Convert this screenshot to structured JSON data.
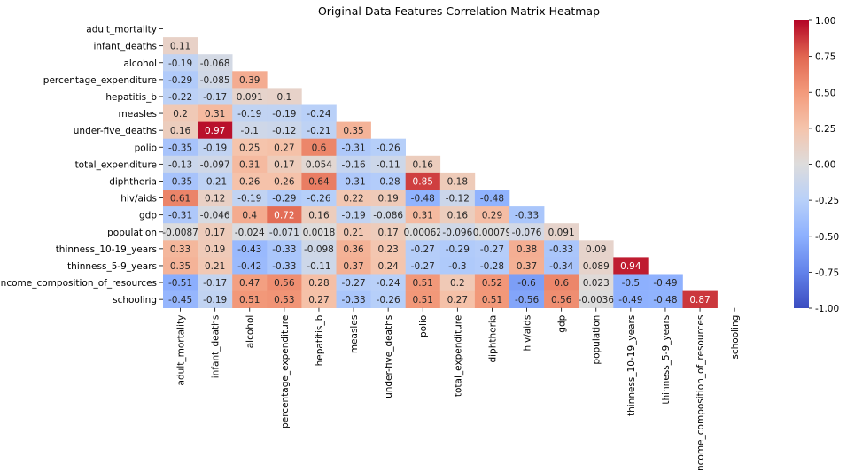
{
  "chart_data": {
    "type": "heatmap",
    "title": "Original Data Features Correlation Matrix Heatmap",
    "xlabel": "",
    "ylabel": "",
    "labels": [
      "adult_mortality",
      "infant_deaths",
      "alcohol",
      "percentage_expenditure",
      "hepatitis_b",
      "measles",
      "under-five_deaths",
      "polio",
      "total_expenditure",
      "diphtheria",
      "hiv/aids",
      "gdp",
      "population",
      "thinness_10-19_years",
      "thinness_5-9_years",
      "income_composition_of_resources",
      "schooling"
    ],
    "lower_triangle": [
      [],
      [
        "0.11"
      ],
      [
        "-0.19",
        "-0.068"
      ],
      [
        "-0.29",
        "-0.085",
        "0.39"
      ],
      [
        "-0.22",
        "-0.17",
        "0.091",
        "0.1"
      ],
      [
        "0.2",
        "0.31",
        "-0.19",
        "-0.19",
        "-0.24"
      ],
      [
        "0.16",
        "0.97",
        "-0.1",
        "-0.12",
        "-0.21",
        "0.35"
      ],
      [
        "-0.35",
        "-0.19",
        "0.25",
        "0.27",
        "0.6",
        "-0.31",
        "-0.26"
      ],
      [
        "-0.13",
        "-0.097",
        "0.31",
        "0.17",
        "0.054",
        "-0.16",
        "-0.11",
        "0.16"
      ],
      [
        "-0.35",
        "-0.21",
        "0.26",
        "0.26",
        "0.64",
        "-0.31",
        "-0.28",
        "0.85",
        "0.18"
      ],
      [
        "0.61",
        "0.12",
        "-0.19",
        "-0.29",
        "-0.26",
        "0.22",
        "0.19",
        "-0.48",
        "-0.12",
        "-0.48"
      ],
      [
        "-0.31",
        "-0.046",
        "0.4",
        "0.72",
        "0.16",
        "-0.19",
        "-0.086",
        "0.31",
        "0.16",
        "0.29",
        "-0.33"
      ],
      [
        "-0.0087",
        "0.17",
        "-0.024",
        "-0.071",
        "0.0018",
        "0.21",
        "0.17",
        "0.00062",
        "-0.096",
        "0.00079",
        "-0.076",
        "0.091"
      ],
      [
        "0.33",
        "0.19",
        "-0.43",
        "-0.33",
        "-0.098",
        "0.36",
        "0.23",
        "-0.27",
        "-0.29",
        "-0.27",
        "0.38",
        "-0.33",
        "0.09"
      ],
      [
        "0.35",
        "0.21",
        "-0.42",
        "-0.33",
        "-0.11",
        "0.37",
        "0.24",
        "-0.27",
        "-0.3",
        "-0.28",
        "0.37",
        "-0.34",
        "0.089",
        "0.94"
      ],
      [
        "-0.51",
        "-0.17",
        "0.47",
        "0.56",
        "0.28",
        "-0.27",
        "-0.24",
        "0.51",
        "0.2",
        "0.52",
        "-0.6",
        "0.6",
        "0.023",
        "-0.5",
        "-0.49"
      ],
      [
        "-0.45",
        "-0.19",
        "0.51",
        "0.53",
        "0.27",
        "-0.33",
        "-0.26",
        "0.51",
        "0.27",
        "0.51",
        "-0.56",
        "0.56",
        "-0.0036",
        "-0.49",
        "-0.48",
        "0.87"
      ]
    ],
    "colormap": "coolwarm",
    "vmin": -1.0,
    "vmax": 1.0,
    "colorbar_ticks": [
      "1.00",
      "0.75",
      "0.50",
      "0.25",
      "0.00",
      "-0.25",
      "-0.50",
      "-0.75",
      "-1.00"
    ]
  }
}
